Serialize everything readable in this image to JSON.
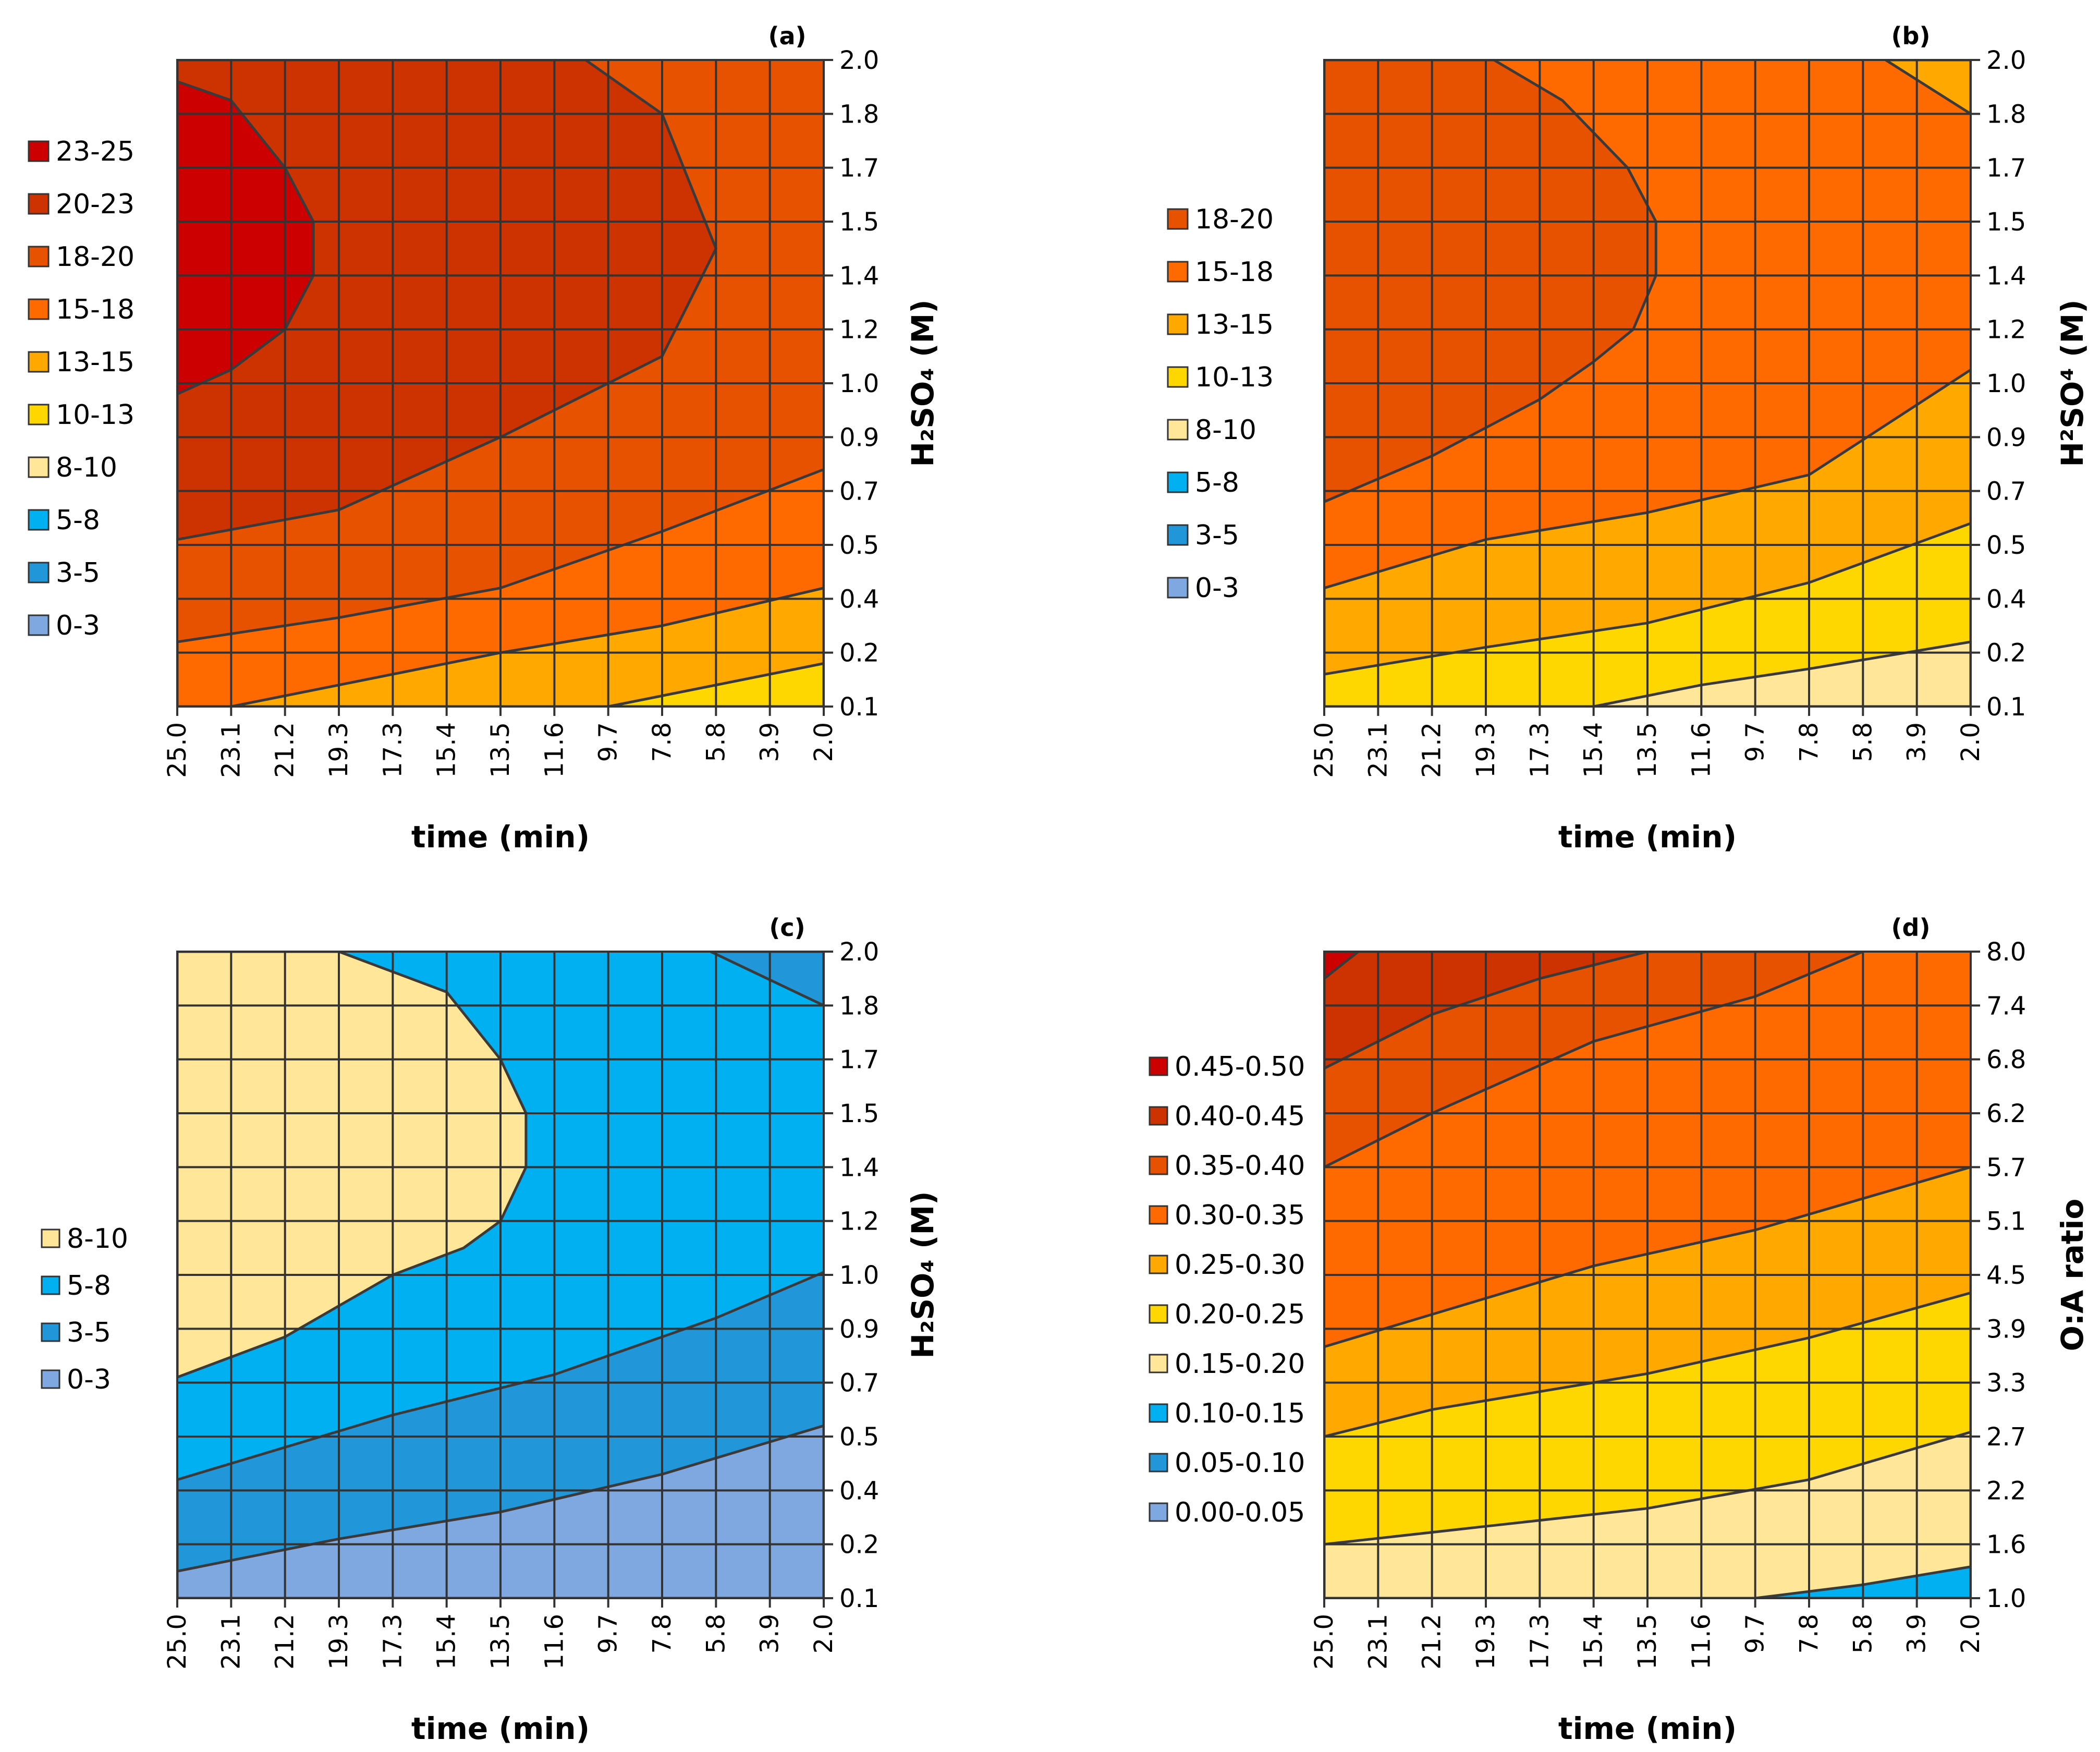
{
  "chart_data": [
    {
      "type": "contour",
      "panel_label": "(a)",
      "xlabel": "time (min)",
      "ylabel": "H₂SO₄ (M)",
      "x_ticks": [
        "25.0",
        "23.1",
        "21.2",
        "19.3",
        "17.3",
        "15.4",
        "13.5",
        "11.6",
        "9.7",
        "7.8",
        "5.8",
        "3.9",
        "2.0"
      ],
      "y_ticks": [
        "0.1",
        "0.2",
        "0.4",
        "0.5",
        "0.7",
        "0.9",
        "1.0",
        "1.2",
        "1.4",
        "1.5",
        "1.7",
        "1.8",
        "2.0"
      ],
      "legend": [
        {
          "label": "23-25",
          "color": "#cc0000"
        },
        {
          "label": "20-23",
          "color": "#cc3300"
        },
        {
          "label": "18-20",
          "color": "#e65200"
        },
        {
          "label": "15-18",
          "color": "#ff6a00"
        },
        {
          "label": "13-15",
          "color": "#ffa800"
        },
        {
          "label": "10-13",
          "color": "#ffd700"
        },
        {
          "label": "8-10",
          "color": "#ffe699"
        },
        {
          "label": "5-8",
          "color": "#00b0f0"
        },
        {
          "label": "3-5",
          "color": "#2196d8"
        },
        {
          "label": "0-3",
          "color": "#7fa8e0"
        }
      ],
      "background": "#e65200",
      "contours": [
        {
          "color": "#ffd700",
          "points": [
            [
              2.0,
              0.18
            ],
            [
              5.8,
              0.14
            ],
            [
              9.7,
              0.1
            ],
            [
              2.0,
              0.1
            ]
          ]
        },
        {
          "color": "#ffa800",
          "points": [
            [
              23.1,
              0.1
            ],
            [
              19.3,
              0.14
            ],
            [
              13.5,
              0.2
            ],
            [
              7.8,
              0.3
            ],
            [
              2.0,
              0.42
            ],
            [
              2.0,
              0.18
            ],
            [
              5.8,
              0.14
            ],
            [
              9.7,
              0.1
            ]
          ]
        },
        {
          "color": "#ff6a00",
          "points": [
            [
              25.0,
              0.24
            ],
            [
              19.3,
              0.33
            ],
            [
              13.5,
              0.42
            ],
            [
              7.8,
              0.55
            ],
            [
              2.0,
              0.78
            ],
            [
              2.0,
              0.42
            ],
            [
              7.8,
              0.3
            ],
            [
              13.5,
              0.2
            ],
            [
              19.3,
              0.14
            ],
            [
              23.1,
              0.1
            ],
            [
              25.0,
              0.1
            ]
          ]
        },
        {
          "color": "#cc3300",
          "points": [
            [
              25.0,
              0.52
            ],
            [
              19.3,
              0.63
            ],
            [
              13.5,
              0.9
            ],
            [
              9.7,
              1.0
            ],
            [
              7.8,
              1.1
            ],
            [
              5.8,
              1.45
            ],
            [
              7.8,
              1.8
            ],
            [
              10.5,
              2.0
            ],
            [
              25.0,
              2.0
            ]
          ]
        },
        {
          "color": "#cc0000",
          "points": [
            [
              25.0,
              0.98
            ],
            [
              23.1,
              1.05
            ],
            [
              21.2,
              1.2
            ],
            [
              20.2,
              1.4
            ],
            [
              20.2,
              1.5
            ],
            [
              21.2,
              1.7
            ],
            [
              23.1,
              1.85
            ],
            [
              25.0,
              1.92
            ]
          ]
        }
      ]
    },
    {
      "type": "contour",
      "panel_label": "(b)",
      "xlabel": "time (min)",
      "ylabel": "H²SO⁴ (M)",
      "x_ticks": [
        "25.0",
        "23.1",
        "21.2",
        "19.3",
        "17.3",
        "15.4",
        "13.5",
        "11.6",
        "9.7",
        "7.8",
        "5.8",
        "3.9",
        "2.0"
      ],
      "y_ticks": [
        "0.1",
        "0.2",
        "0.4",
        "0.5",
        "0.7",
        "0.9",
        "1.0",
        "1.2",
        "1.4",
        "1.5",
        "1.7",
        "1.8",
        "2.0"
      ],
      "legend": [
        {
          "label": "18-20",
          "color": "#e65200"
        },
        {
          "label": "15-18",
          "color": "#ff6a00"
        },
        {
          "label": "13-15",
          "color": "#ffa800"
        },
        {
          "label": "10-13",
          "color": "#ffd700"
        },
        {
          "label": "8-10",
          "color": "#ffe699"
        },
        {
          "label": "5-8",
          "color": "#00b0f0"
        },
        {
          "label": "3-5",
          "color": "#2196d8"
        },
        {
          "label": "0-3",
          "color": "#7fa8e0"
        }
      ],
      "background": "#ff6a00",
      "contours": [
        {
          "color": "#ffa800",
          "points": [
            [
              25.0,
              0.42
            ],
            [
              19.3,
              0.52
            ],
            [
              13.5,
              0.62
            ],
            [
              7.8,
              0.76
            ],
            [
              2.0,
              1.05
            ],
            [
              2.0,
              0.1
            ],
            [
              25.0,
              0.1
            ]
          ]
        },
        {
          "color": "#ffd700",
          "points": [
            [
              25.0,
              0.16
            ],
            [
              19.3,
              0.22
            ],
            [
              13.5,
              0.31
            ],
            [
              7.8,
              0.43
            ],
            [
              2.0,
              0.58
            ],
            [
              2.0,
              0.1
            ],
            [
              25.0,
              0.1
            ]
          ]
        },
        {
          "color": "#ffe699",
          "points": [
            [
              15.4,
              0.1
            ],
            [
              11.6,
              0.14
            ],
            [
              7.8,
              0.17
            ],
            [
              2.0,
              0.24
            ],
            [
              2.0,
              0.1
            ]
          ]
        },
        {
          "color": "#ffa800",
          "points": [
            [
              5.0,
              2.0
            ],
            [
              2.0,
              1.8
            ],
            [
              2.0,
              2.0
            ]
          ]
        },
        {
          "color": "#e65200",
          "points": [
            [
              25.0,
              0.66
            ],
            [
              21.2,
              0.83
            ],
            [
              17.3,
              0.97
            ],
            [
              15.4,
              1.08
            ],
            [
              14.0,
              1.2
            ],
            [
              13.2,
              1.4
            ],
            [
              13.2,
              1.5
            ],
            [
              14.2,
              1.7
            ],
            [
              16.5,
              1.85
            ],
            [
              19.0,
              2.0
            ],
            [
              25.0,
              2.0
            ]
          ]
        }
      ]
    },
    {
      "type": "contour",
      "panel_label": "(c)",
      "xlabel": "time (min)",
      "ylabel": "H₂SO₄ (M)",
      "x_ticks": [
        "25.0",
        "23.1",
        "21.2",
        "19.3",
        "17.3",
        "15.4",
        "13.5",
        "11.6",
        "9.7",
        "7.8",
        "5.8",
        "3.9",
        "2.0"
      ],
      "y_ticks": [
        "0.1",
        "0.2",
        "0.4",
        "0.5",
        "0.7",
        "0.9",
        "1.0",
        "1.2",
        "1.4",
        "1.5",
        "1.7",
        "1.8",
        "2.0"
      ],
      "legend": [
        {
          "label": "8-10",
          "color": "#ffe699"
        },
        {
          "label": "5-8",
          "color": "#00b0f0"
        },
        {
          "label": "3-5",
          "color": "#2196d8"
        },
        {
          "label": "0-3",
          "color": "#7fa8e0"
        }
      ],
      "background": "#00b0f0",
      "contours": [
        {
          "color": "#2196d8",
          "points": [
            [
              25.0,
              0.42
            ],
            [
              17.3,
              0.58
            ],
            [
              11.6,
              0.73
            ],
            [
              5.8,
              0.92
            ],
            [
              2.0,
              1.01
            ],
            [
              2.0,
              0.1
            ],
            [
              25.0,
              0.1
            ]
          ]
        },
        {
          "color": "#7fa8e0",
          "points": [
            [
              25.0,
              0.15
            ],
            [
              19.3,
              0.22
            ],
            [
              13.5,
              0.32
            ],
            [
              7.8,
              0.43
            ],
            [
              2.0,
              0.54
            ],
            [
              2.0,
              0.1
            ],
            [
              25.0,
              0.1
            ]
          ]
        },
        {
          "color": "#2196d8",
          "points": [
            [
              6.0,
              2.0
            ],
            [
              2.0,
              1.8
            ],
            [
              2.0,
              2.0
            ]
          ]
        },
        {
          "color": "#ffe699",
          "points": [
            [
              25.0,
              0.72
            ],
            [
              21.2,
              0.87
            ],
            [
              17.3,
              1.0
            ],
            [
              14.8,
              1.1
            ],
            [
              13.5,
              1.2
            ],
            [
              12.6,
              1.4
            ],
            [
              12.6,
              1.5
            ],
            [
              13.5,
              1.7
            ],
            [
              15.4,
              1.85
            ],
            [
              19.3,
              2.0
            ],
            [
              25.0,
              2.0
            ]
          ]
        }
      ]
    },
    {
      "type": "contour",
      "panel_label": "(d)",
      "xlabel": "time (min)",
      "ylabel": "O:A ratio",
      "x_ticks": [
        "25.0",
        "23.1",
        "21.2",
        "19.3",
        "17.3",
        "15.4",
        "13.5",
        "11.6",
        "9.7",
        "7.8",
        "5.8",
        "3.9",
        "2.0"
      ],
      "y_ticks": [
        "1.0",
        "1.6",
        "2.2",
        "2.7",
        "3.3",
        "3.9",
        "4.5",
        "5.1",
        "5.7",
        "6.2",
        "6.8",
        "7.4",
        "8.0"
      ],
      "legend": [
        {
          "label": "0.45-0.50",
          "color": "#cc0000"
        },
        {
          "label": "0.40-0.45",
          "color": "#cc3300"
        },
        {
          "label": "0.35-0.40",
          "color": "#e65200"
        },
        {
          "label": "0.30-0.35",
          "color": "#ff6a00"
        },
        {
          "label": "0.25-0.30",
          "color": "#ffa800"
        },
        {
          "label": "0.20-0.25",
          "color": "#ffd700"
        },
        {
          "label": "0.15-0.20",
          "color": "#ffe699"
        },
        {
          "label": "0.10-0.15",
          "color": "#00b0f0"
        },
        {
          "label": "0.05-0.10",
          "color": "#2196d8"
        },
        {
          "label": "0.00-0.05",
          "color": "#7fa8e0"
        }
      ],
      "background": "#ff6a00",
      "contours": [
        {
          "color": "#e65200",
          "points": [
            [
              25.0,
              5.7
            ],
            [
              21.2,
              6.2
            ],
            [
              15.4,
              7.0
            ],
            [
              9.7,
              7.5
            ],
            [
              5.8,
              8.0
            ],
            [
              25.0,
              8.0
            ]
          ]
        },
        {
          "color": "#cc3300",
          "points": [
            [
              25.0,
              6.7
            ],
            [
              21.2,
              7.3
            ],
            [
              17.3,
              7.7
            ],
            [
              13.5,
              8.0
            ],
            [
              25.0,
              8.0
            ]
          ]
        },
        {
          "color": "#cc0000",
          "points": [
            [
              25.0,
              7.7
            ],
            [
              23.8,
              8.0
            ],
            [
              25.0,
              8.0
            ]
          ]
        },
        {
          "color": "#ffa800",
          "points": [
            [
              25.0,
              3.7
            ],
            [
              15.4,
              4.6
            ],
            [
              9.7,
              5.0
            ],
            [
              2.0,
              5.7
            ],
            [
              2.0,
              1.0
            ],
            [
              25.0,
              1.0
            ]
          ]
        },
        {
          "color": "#ffd700",
          "points": [
            [
              25.0,
              2.7
            ],
            [
              21.2,
              3.0
            ],
            [
              13.5,
              3.4
            ],
            [
              7.8,
              3.8
            ],
            [
              2.0,
              4.3
            ],
            [
              2.0,
              1.0
            ],
            [
              25.0,
              1.0
            ]
          ]
        },
        {
          "color": "#ffe699",
          "points": [
            [
              25.0,
              1.6
            ],
            [
              19.3,
              1.8
            ],
            [
              13.5,
              2.0
            ],
            [
              7.8,
              2.3
            ],
            [
              2.0,
              2.75
            ],
            [
              2.0,
              1.0
            ],
            [
              25.0,
              1.0
            ]
          ]
        },
        {
          "color": "#00b0f0",
          "points": [
            [
              9.7,
              1.0
            ],
            [
              5.8,
              1.15
            ],
            [
              2.0,
              1.35
            ],
            [
              2.0,
              1.0
            ]
          ]
        }
      ]
    }
  ]
}
